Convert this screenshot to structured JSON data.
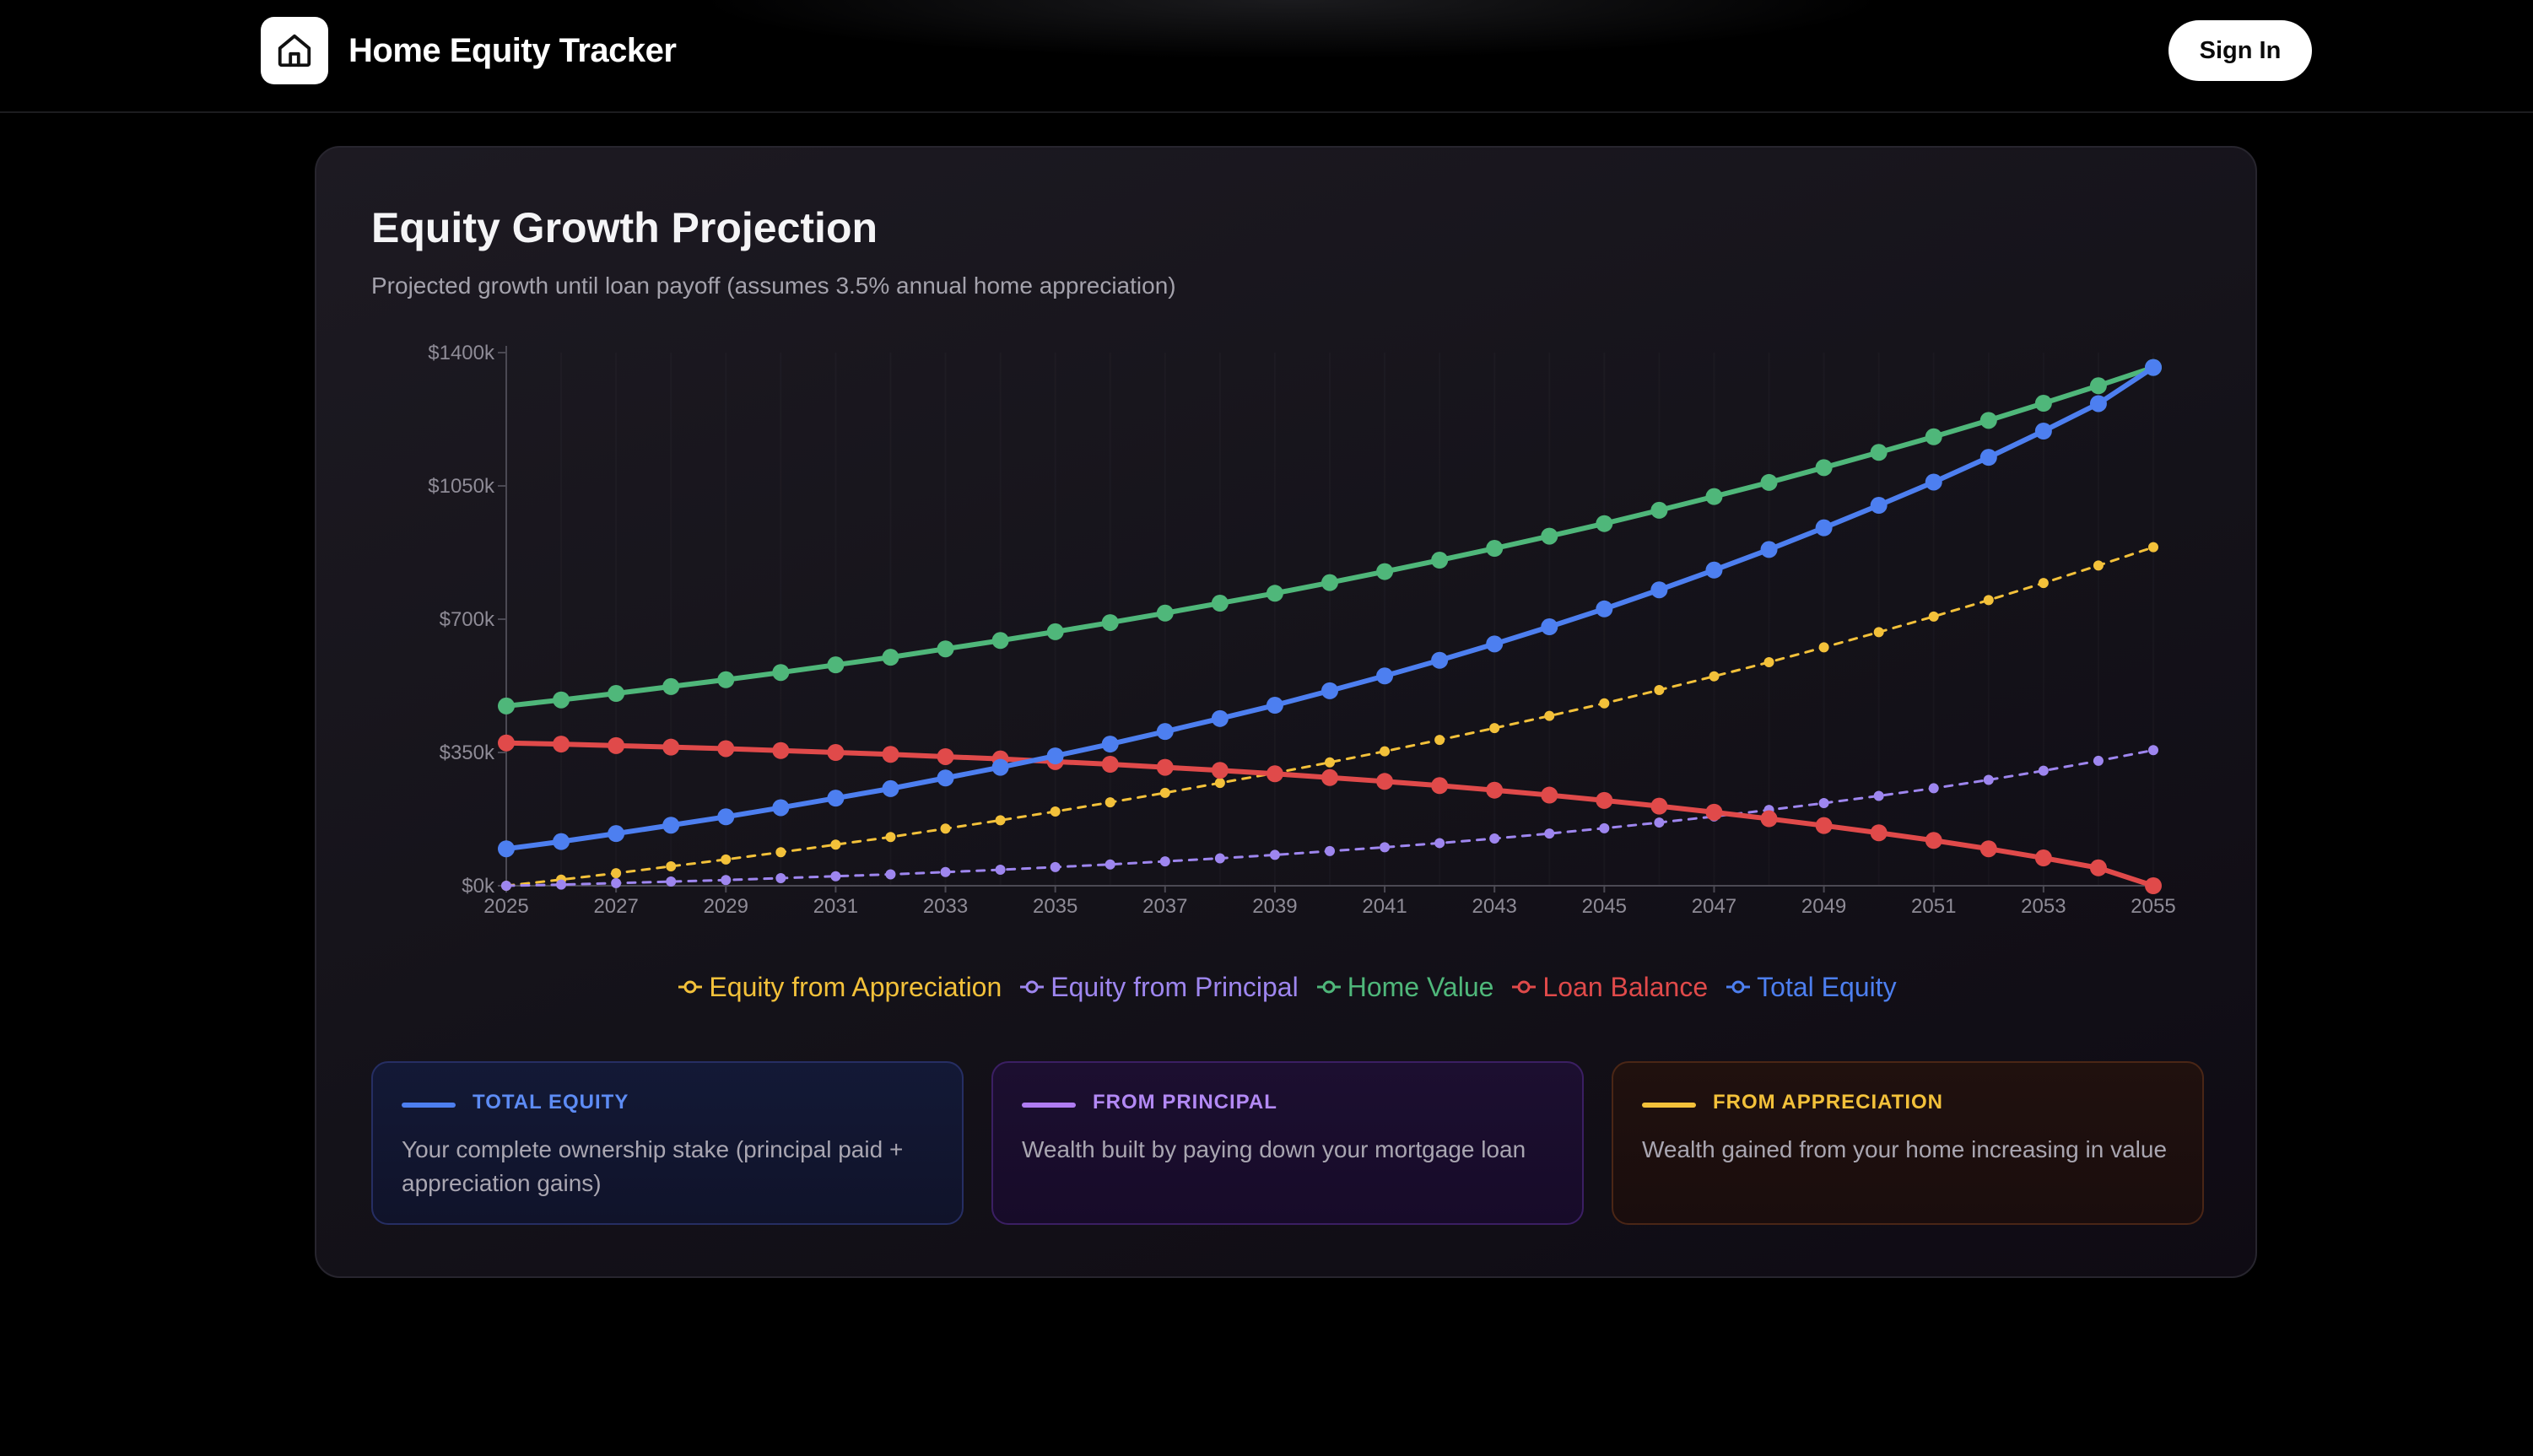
{
  "header": {
    "title": "Home Equity Tracker",
    "sign_in_label": "Sign In"
  },
  "card": {
    "title": "Equity Growth Projection",
    "subtitle": "Projected growth until loan payoff (assumes 3.5% annual home appreciation)"
  },
  "info_boxes": [
    {
      "label": "TOTAL EQUITY",
      "description": "Your complete ownership stake (principal paid + appreciation gains)",
      "color": "#4d7ff0"
    },
    {
      "label": "FROM PRINCIPAL",
      "description": "Wealth built by paying down your mortgage loan",
      "color": "#b07cf2"
    },
    {
      "label": "FROM APPRECIATION",
      "description": "Wealth gained from your home increasing in value",
      "color": "#f3c13a"
    }
  ],
  "chart_data": {
    "type": "line",
    "title": "",
    "xlabel": "",
    "ylabel": "",
    "ylim": [
      0,
      1400
    ],
    "y_ticks": [
      "$0k",
      "$350k",
      "$700k",
      "$1050k",
      "$1400k"
    ],
    "y_tick_values": [
      0,
      350,
      700,
      1050,
      1400
    ],
    "x": [
      2025,
      2026,
      2027,
      2028,
      2029,
      2030,
      2031,
      2032,
      2033,
      2034,
      2035,
      2036,
      2037,
      2038,
      2039,
      2040,
      2041,
      2042,
      2043,
      2044,
      2045,
      2046,
      2047,
      2048,
      2049,
      2050,
      2051,
      2052,
      2053,
      2054,
      2055
    ],
    "x_tick_labels": [
      "2025",
      "2027",
      "2029",
      "2031",
      "2033",
      "2035",
      "2037",
      "2039",
      "2041",
      "2043",
      "2045",
      "2047",
      "2049",
      "2051",
      "2053",
      "2055"
    ],
    "legend_position": "bottom",
    "series": [
      {
        "name": "Equity from Appreciation",
        "color": "#f3c13a",
        "style": "dashed",
        "values": [
          0,
          16,
          33,
          51,
          69,
          88,
          108,
          128,
          150,
          172,
          195,
          219,
          244,
          270,
          296,
          324,
          353,
          383,
          414,
          446,
          479,
          514,
          550,
          587,
          626,
          666,
          707,
          750,
          795,
          841,
          889
        ]
      },
      {
        "name": "Equity from Principal",
        "color": "#9e86ef",
        "style": "dashed",
        "values": [
          0,
          3,
          7,
          11,
          15,
          20,
          25,
          30,
          36,
          42,
          49,
          56,
          64,
          72,
          81,
          91,
          101,
          112,
          124,
          137,
          151,
          166,
          182,
          199,
          217,
          236,
          256,
          278,
          302,
          328,
          356
        ]
      },
      {
        "name": "Home Value",
        "color": "#4fb77a",
        "style": "solid",
        "values": [
          472,
          488,
          505,
          523,
          541,
          560,
          580,
          600,
          622,
          644,
          667,
          691,
          716,
          742,
          768,
          796,
          825,
          855,
          886,
          918,
          951,
          986,
          1022,
          1059,
          1098,
          1138,
          1179,
          1222,
          1267,
          1313,
          1361
        ]
      },
      {
        "name": "Loan Balance",
        "color": "#e04a4a",
        "style": "solid",
        "values": [
          375,
          372,
          368,
          364,
          360,
          355,
          350,
          345,
          339,
          333,
          326,
          319,
          311,
          303,
          294,
          284,
          274,
          263,
          251,
          238,
          224,
          209,
          193,
          176,
          158,
          139,
          119,
          97,
          73,
          47,
          0
        ]
      },
      {
        "name": "Total Equity",
        "color": "#4d7ff0",
        "style": "solid",
        "values": [
          97,
          116,
          137,
          159,
          181,
          205,
          230,
          255,
          283,
          311,
          341,
          372,
          405,
          439,
          474,
          512,
          551,
          592,
          635,
          680,
          727,
          777,
          829,
          883,
          940,
          999,
          1060,
          1125,
          1194,
          1266,
          1361
        ]
      }
    ]
  }
}
